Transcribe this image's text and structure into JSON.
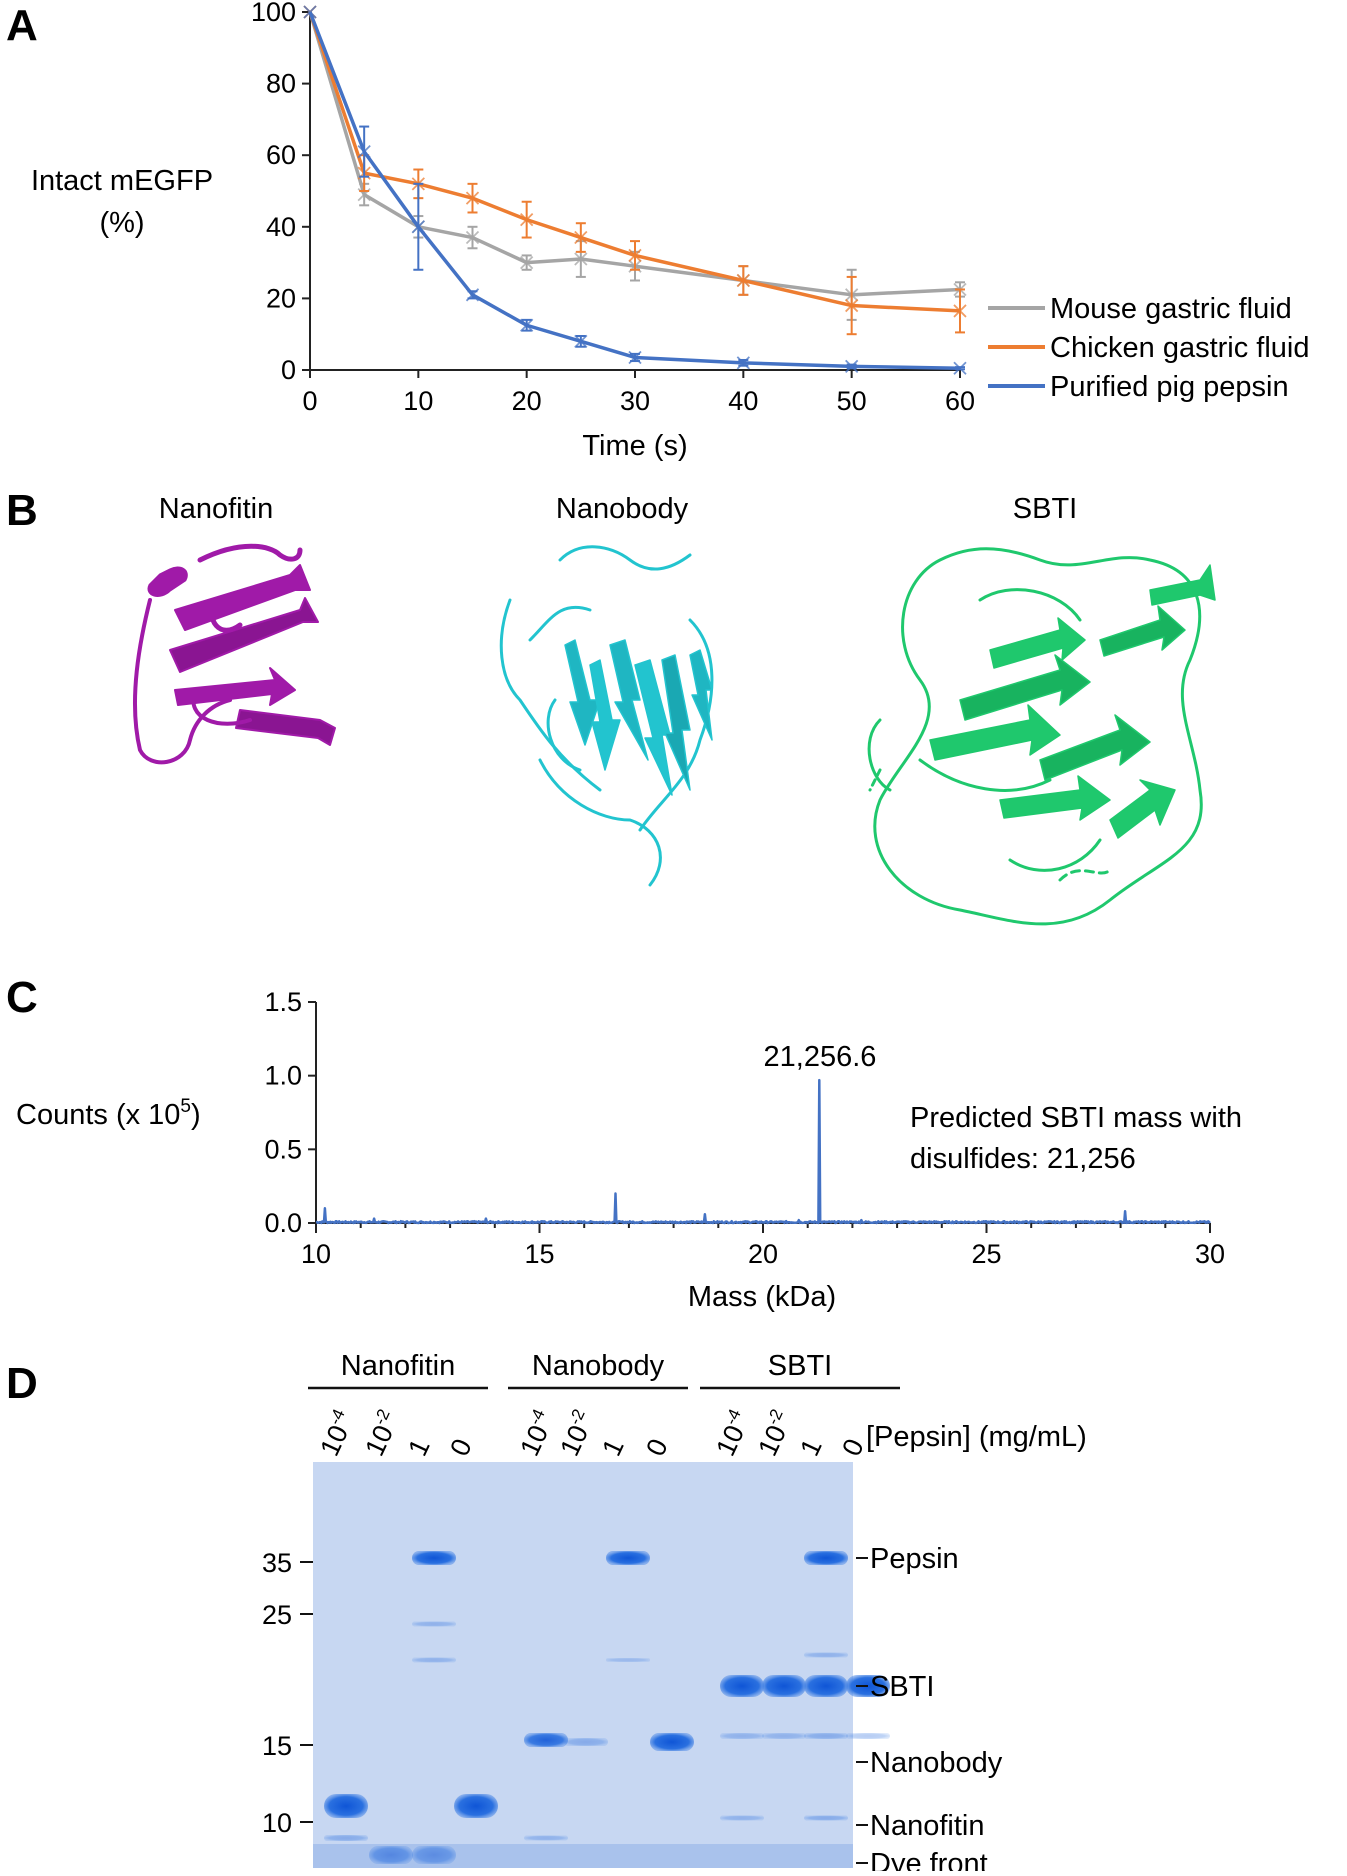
{
  "panel_letters": [
    "A",
    "B",
    "C",
    "D"
  ],
  "panelA": {
    "ylabel_line1": "Intact mEGFP",
    "ylabel_line2": "(%)",
    "xlabel": "Time (s)"
  },
  "panelB": {
    "titles": [
      "Nanofitin",
      "Nanobody",
      "SBTI"
    ],
    "colors": [
      "#a01aa8",
      "#22c4cf",
      "#1fc86d"
    ]
  },
  "panelC": {
    "peak_label": "21,256.6",
    "annotation_line1": "Predicted SBTI mass with",
    "annotation_line2": "disulfides: 21,256",
    "ylabel": "Counts (x 10",
    "ylabel_sup": "5",
    "ylabel_end": ")",
    "xlabel": "Mass (kDa)"
  },
  "panelD": {
    "groups": [
      "Nanofitin",
      "Nanobody",
      "SBTI"
    ],
    "lane_labels": [
      {
        "base": "10",
        "exp": "-4"
      },
      {
        "base": "10",
        "exp": "-2"
      },
      {
        "base": "1",
        "exp": ""
      },
      {
        "base": "0",
        "exp": ""
      },
      {
        "base": "10",
        "exp": "-4"
      },
      {
        "base": "10",
        "exp": "-2"
      },
      {
        "base": "1",
        "exp": ""
      },
      {
        "base": "0",
        "exp": ""
      },
      {
        "base": "10",
        "exp": "-4"
      },
      {
        "base": "10",
        "exp": "-2"
      },
      {
        "base": "1",
        "exp": ""
      },
      {
        "base": "0",
        "exp": ""
      }
    ],
    "pepsin_label": "[Pepsin] (mg/mL)",
    "markers": [
      {
        "kda": 35,
        "label": "35"
      },
      {
        "kda": 25,
        "label": "25"
      },
      {
        "kda": 15,
        "label": "15"
      },
      {
        "kda": 10,
        "label": "10"
      }
    ],
    "band_labels": [
      "Pepsin",
      "SBTI",
      "Nanobody",
      "Nanofitin",
      "Dye front"
    ],
    "gel_color": "#c7d7f2",
    "band_color": "#1d66dc"
  },
  "chart_data": [
    {
      "type": "line",
      "panel": "A",
      "xlabel": "Time (s)",
      "ylabel": "Intact mEGFP (%)",
      "x": [
        0,
        5,
        10,
        15,
        20,
        25,
        30,
        40,
        50,
        60
      ],
      "xlim": [
        0,
        60
      ],
      "ylim": [
        0,
        100
      ],
      "xticks": [
        0,
        10,
        20,
        30,
        40,
        50,
        60
      ],
      "yticks": [
        0,
        20,
        40,
        60,
        80,
        100
      ],
      "legend_position": "right",
      "series": [
        {
          "name": "Mouse gastric fluid",
          "color": "#a5a5a5",
          "values": [
            100,
            49,
            40,
            37,
            30,
            31,
            29,
            25,
            21,
            22.5
          ],
          "errors": [
            0,
            3,
            3,
            3,
            2,
            5,
            4,
            4,
            7,
            2
          ]
        },
        {
          "name": "Chicken gastric fluid",
          "color": "#ed7d31",
          "values": [
            100,
            55,
            52,
            48,
            42,
            37,
            32,
            25,
            18,
            16.5
          ],
          "errors": [
            0,
            5,
            4,
            4,
            5,
            4,
            4,
            4,
            8,
            6
          ]
        },
        {
          "name": "Purified pig pepsin",
          "color": "#4472c4",
          "values": [
            100,
            61,
            40,
            21,
            12.5,
            8,
            3.5,
            2,
            1,
            0.5
          ],
          "errors": [
            0,
            7,
            12,
            1,
            1.5,
            1.5,
            1,
            0.8,
            0.5,
            0.3
          ]
        }
      ]
    },
    {
      "type": "line",
      "panel": "C",
      "xlabel": "Mass (kDa)",
      "ylabel": "Counts (x 10^5)",
      "xlim": [
        10,
        30
      ],
      "ylim": [
        0,
        1.5
      ],
      "xticks": [
        10,
        15,
        20,
        25,
        30
      ],
      "yticks": [
        "0.0",
        "0.5",
        "1.0",
        "1.5"
      ],
      "color": "#4472c4",
      "baseline": 0.01,
      "peaks": [
        {
          "x": 10.2,
          "y": 0.1
        },
        {
          "x": 11.3,
          "y": 0.03
        },
        {
          "x": 13.8,
          "y": 0.03
        },
        {
          "x": 16.7,
          "y": 0.2
        },
        {
          "x": 18.7,
          "y": 0.06
        },
        {
          "x": 20.8,
          "y": 0.02
        },
        {
          "x": 21.26,
          "y": 0.97
        },
        {
          "x": 22.2,
          "y": 0.02
        },
        {
          "x": 28.1,
          "y": 0.08
        }
      ]
    }
  ]
}
